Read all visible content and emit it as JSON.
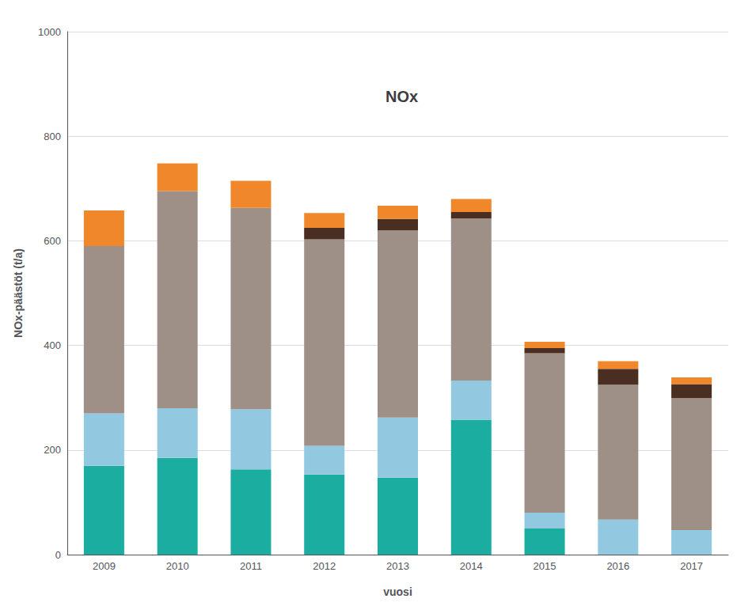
{
  "chart_data": {
    "type": "bar",
    "title": "NOx",
    "xlabel": "vuosi",
    "ylabel": "NOx-päästöt (t/a)",
    "categories": [
      "2009",
      "2010",
      "2011",
      "2012",
      "2013",
      "2014",
      "2015",
      "2016",
      "2017"
    ],
    "series": [
      {
        "color": "#1aada0",
        "values": [
          170,
          185,
          163,
          153,
          147,
          258,
          50,
          0,
          0
        ]
      },
      {
        "color": "#92c8e0",
        "values": [
          100,
          95,
          115,
          55,
          115,
          75,
          30,
          67,
          47
        ]
      },
      {
        "color": "#9e9087",
        "values": [
          320,
          415,
          385,
          395,
          358,
          310,
          305,
          258,
          252
        ]
      },
      {
        "color": "#4a2e22",
        "values": [
          0,
          0,
          0,
          22,
          22,
          12,
          10,
          30,
          27
        ]
      },
      {
        "color": "#f0872a",
        "values": [
          68,
          53,
          52,
          28,
          25,
          25,
          12,
          15,
          13
        ]
      }
    ],
    "stacked": true,
    "ylim": [
      0,
      1000
    ],
    "yticks": [
      0,
      200,
      400,
      600,
      800,
      1000
    ],
    "grid": true
  }
}
